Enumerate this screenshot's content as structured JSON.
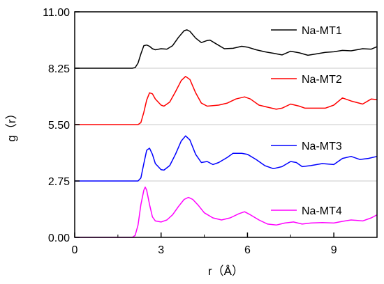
{
  "chart_data": {
    "type": "line",
    "title": "",
    "xlabel": "r（Å）",
    "ylabel": "g（r）",
    "xlim": [
      0,
      10.5
    ],
    "ylim": [
      0,
      11.0
    ],
    "xticks": [
      0,
      3,
      6,
      9
    ],
    "xtick_labels": [
      "0",
      "3",
      "6",
      "9"
    ],
    "yticks": [
      0,
      2.75,
      5.5,
      8.25,
      11.0
    ],
    "ytick_labels": [
      "0.00",
      "2.75",
      "5.50",
      "8.25",
      "11.00"
    ],
    "baselines": [
      2.75,
      5.5,
      8.25
    ],
    "grid": false,
    "legend": "inline labels, right side",
    "series": [
      {
        "name": "Na-MT1",
        "color": "#000000",
        "points": [
          [
            0,
            8.25
          ],
          [
            2.0,
            8.25
          ],
          [
            2.1,
            8.28
          ],
          [
            2.2,
            8.5
          ],
          [
            2.3,
            8.95
          ],
          [
            2.4,
            9.35
          ],
          [
            2.5,
            9.38
          ],
          [
            2.6,
            9.32
          ],
          [
            2.7,
            9.2
          ],
          [
            2.8,
            9.15
          ],
          [
            3.0,
            9.2
          ],
          [
            3.2,
            9.18
          ],
          [
            3.4,
            9.35
          ],
          [
            3.6,
            9.75
          ],
          [
            3.8,
            10.08
          ],
          [
            3.9,
            10.12
          ],
          [
            4.0,
            10.05
          ],
          [
            4.2,
            9.72
          ],
          [
            4.4,
            9.5
          ],
          [
            4.6,
            9.6
          ],
          [
            4.7,
            9.62
          ],
          [
            4.9,
            9.45
          ],
          [
            5.2,
            9.2
          ],
          [
            5.5,
            9.22
          ],
          [
            5.8,
            9.32
          ],
          [
            6.0,
            9.28
          ],
          [
            6.3,
            9.15
          ],
          [
            6.6,
            9.05
          ],
          [
            6.9,
            8.98
          ],
          [
            7.2,
            8.9
          ],
          [
            7.5,
            9.08
          ],
          [
            7.8,
            9.0
          ],
          [
            8.1,
            8.88
          ],
          [
            8.4,
            8.95
          ],
          [
            8.7,
            9.02
          ],
          [
            9.0,
            9.05
          ],
          [
            9.3,
            9.12
          ],
          [
            9.6,
            9.1
          ],
          [
            10.0,
            9.2
          ],
          [
            10.3,
            9.18
          ],
          [
            10.5,
            9.3
          ]
        ]
      },
      {
        "name": "Na-MT2",
        "color": "#ff0000",
        "points": [
          [
            0,
            5.5
          ],
          [
            2.2,
            5.5
          ],
          [
            2.3,
            5.6
          ],
          [
            2.4,
            6.1
          ],
          [
            2.5,
            6.7
          ],
          [
            2.6,
            7.05
          ],
          [
            2.7,
            7.0
          ],
          [
            2.8,
            6.75
          ],
          [
            3.0,
            6.45
          ],
          [
            3.1,
            6.4
          ],
          [
            3.3,
            6.6
          ],
          [
            3.5,
            7.1
          ],
          [
            3.7,
            7.65
          ],
          [
            3.85,
            7.85
          ],
          [
            4.0,
            7.7
          ],
          [
            4.2,
            7.05
          ],
          [
            4.4,
            6.55
          ],
          [
            4.6,
            6.4
          ],
          [
            5.0,
            6.45
          ],
          [
            5.3,
            6.55
          ],
          [
            5.6,
            6.75
          ],
          [
            5.9,
            6.85
          ],
          [
            6.1,
            6.75
          ],
          [
            6.4,
            6.45
          ],
          [
            6.7,
            6.35
          ],
          [
            7.0,
            6.25
          ],
          [
            7.2,
            6.3
          ],
          [
            7.5,
            6.5
          ],
          [
            7.8,
            6.4
          ],
          [
            8.0,
            6.3
          ],
          [
            8.3,
            6.3
          ],
          [
            8.7,
            6.3
          ],
          [
            9.0,
            6.45
          ],
          [
            9.3,
            6.8
          ],
          [
            9.6,
            6.65
          ],
          [
            10.0,
            6.5
          ],
          [
            10.3,
            6.75
          ],
          [
            10.5,
            6.72
          ]
        ]
      },
      {
        "name": "Na-MT3",
        "color": "#0000ff",
        "points": [
          [
            0,
            2.75
          ],
          [
            2.2,
            2.75
          ],
          [
            2.3,
            2.9
          ],
          [
            2.4,
            3.6
          ],
          [
            2.5,
            4.25
          ],
          [
            2.6,
            4.35
          ],
          [
            2.7,
            4.05
          ],
          [
            2.8,
            3.6
          ],
          [
            3.0,
            3.3
          ],
          [
            3.1,
            3.28
          ],
          [
            3.3,
            3.5
          ],
          [
            3.5,
            4.05
          ],
          [
            3.7,
            4.7
          ],
          [
            3.85,
            4.95
          ],
          [
            4.0,
            4.75
          ],
          [
            4.2,
            4.05
          ],
          [
            4.4,
            3.65
          ],
          [
            4.6,
            3.7
          ],
          [
            4.8,
            3.55
          ],
          [
            5.0,
            3.65
          ],
          [
            5.3,
            3.9
          ],
          [
            5.5,
            4.1
          ],
          [
            5.8,
            4.1
          ],
          [
            6.0,
            4.05
          ],
          [
            6.3,
            3.8
          ],
          [
            6.6,
            3.5
          ],
          [
            6.9,
            3.35
          ],
          [
            7.2,
            3.45
          ],
          [
            7.5,
            3.7
          ],
          [
            7.7,
            3.65
          ],
          [
            7.9,
            3.45
          ],
          [
            8.2,
            3.5
          ],
          [
            8.6,
            3.6
          ],
          [
            9.0,
            3.55
          ],
          [
            9.3,
            3.85
          ],
          [
            9.6,
            3.95
          ],
          [
            9.9,
            3.8
          ],
          [
            10.2,
            3.85
          ],
          [
            10.5,
            3.95
          ]
        ]
      },
      {
        "name": "Na-MT4",
        "color": "#ff00ff",
        "points": [
          [
            0,
            0.0
          ],
          [
            2.0,
            0.0
          ],
          [
            2.1,
            0.1
          ],
          [
            2.2,
            0.6
          ],
          [
            2.3,
            1.6
          ],
          [
            2.4,
            2.3
          ],
          [
            2.45,
            2.45
          ],
          [
            2.5,
            2.3
          ],
          [
            2.6,
            1.6
          ],
          [
            2.7,
            1.0
          ],
          [
            2.8,
            0.8
          ],
          [
            3.0,
            0.75
          ],
          [
            3.2,
            0.85
          ],
          [
            3.4,
            1.1
          ],
          [
            3.6,
            1.5
          ],
          [
            3.8,
            1.85
          ],
          [
            3.95,
            1.95
          ],
          [
            4.1,
            1.85
          ],
          [
            4.3,
            1.55
          ],
          [
            4.5,
            1.2
          ],
          [
            4.8,
            0.95
          ],
          [
            5.1,
            0.85
          ],
          [
            5.4,
            0.95
          ],
          [
            5.7,
            1.15
          ],
          [
            5.9,
            1.25
          ],
          [
            6.1,
            1.1
          ],
          [
            6.4,
            0.85
          ],
          [
            6.7,
            0.65
          ],
          [
            7.0,
            0.6
          ],
          [
            7.3,
            0.7
          ],
          [
            7.6,
            0.75
          ],
          [
            7.9,
            0.65
          ],
          [
            8.2,
            0.7
          ],
          [
            8.6,
            0.72
          ],
          [
            9.0,
            0.7
          ],
          [
            9.3,
            0.78
          ],
          [
            9.6,
            0.85
          ],
          [
            10.0,
            0.8
          ],
          [
            10.3,
            0.95
          ],
          [
            10.5,
            1.1
          ]
        ]
      }
    ]
  }
}
